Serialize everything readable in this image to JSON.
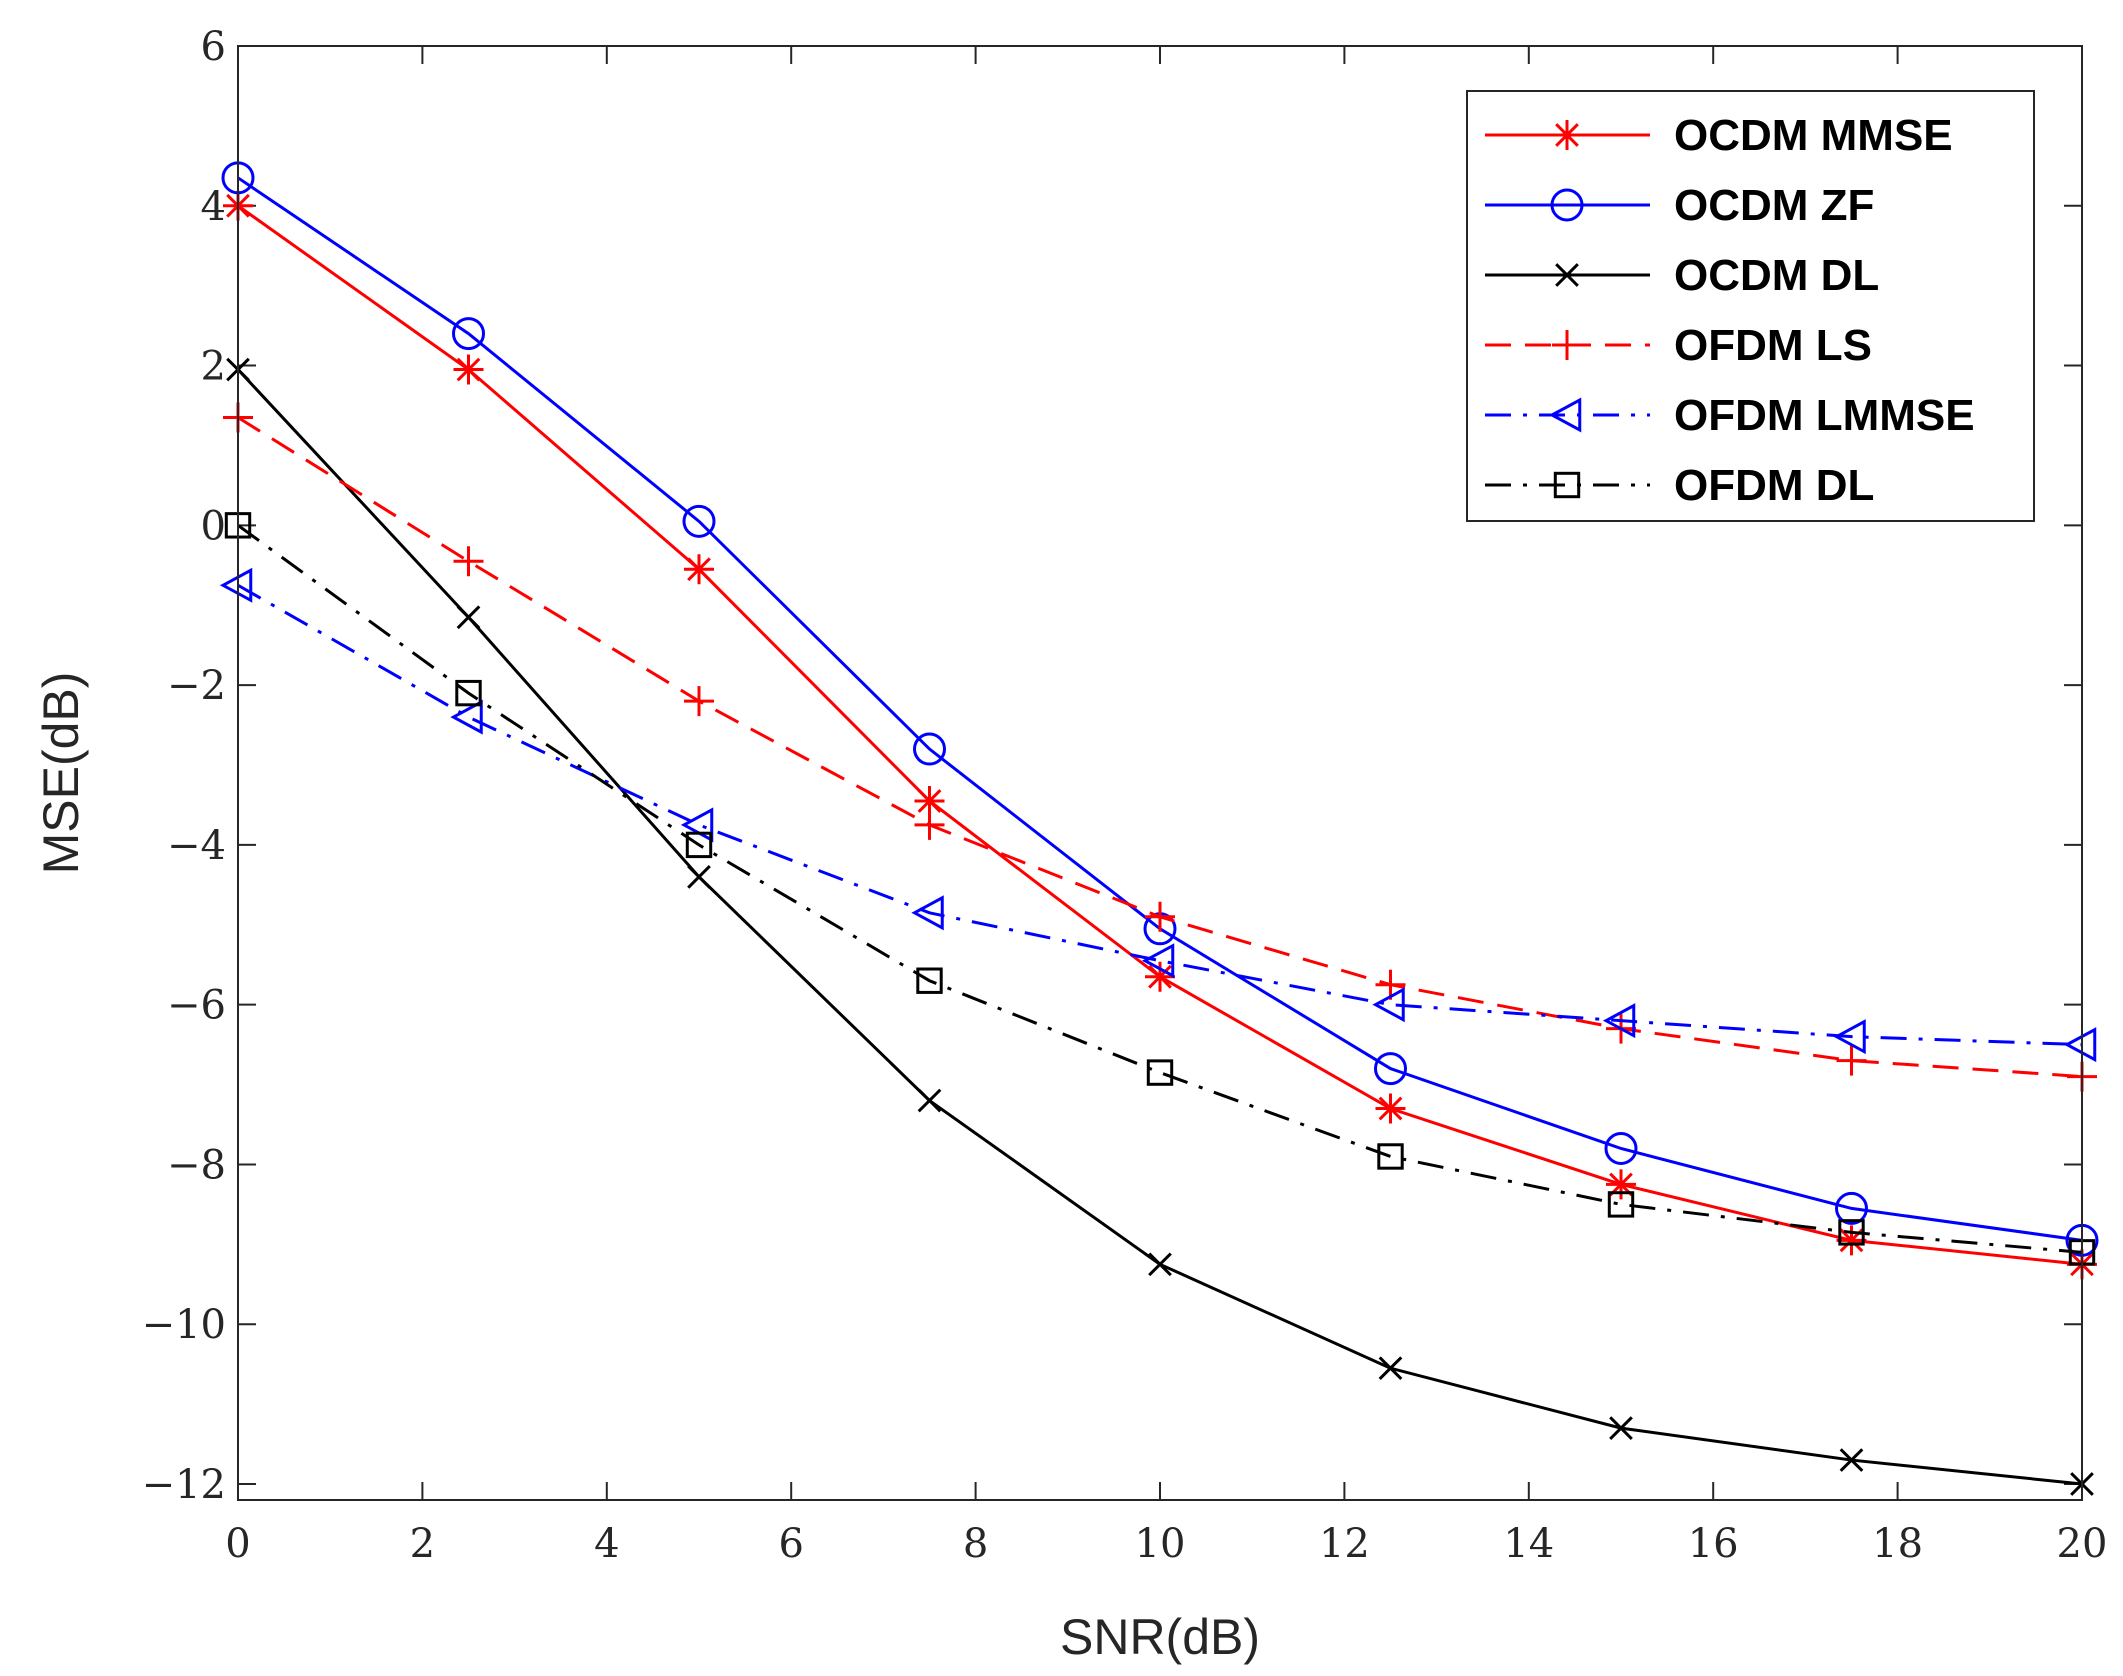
{
  "chart_data": {
    "type": "line",
    "title": "",
    "xlabel": "SNR(dB)",
    "ylabel": "MSE(dB)",
    "xlim": [
      0,
      20
    ],
    "ylim": [
      -12.2,
      6
    ],
    "xticks": [
      0,
      2,
      4,
      6,
      8,
      10,
      12,
      14,
      16,
      18,
      20
    ],
    "yticks": [
      6,
      4,
      2,
      0,
      -2,
      -4,
      -6,
      -8,
      -10,
      -12
    ],
    "xtick_labels": [
      "0",
      "2",
      "4",
      "6",
      "8",
      "10",
      "12",
      "14",
      "16",
      "18",
      "20"
    ],
    "ytick_labels": [
      "6",
      "4",
      "2",
      "0",
      "−2",
      "−4",
      "−6",
      "−8",
      "−10",
      "−12"
    ],
    "grid": false,
    "legend_position": "top-right",
    "x": [
      0,
      2.5,
      5,
      7.5,
      10,
      12.5,
      15,
      17.5,
      20
    ],
    "series": [
      {
        "name": "OCDM MMSE",
        "color": "#ff0000",
        "dash": "solid",
        "marker": "asterisk",
        "values": [
          4.0,
          1.95,
          -0.55,
          -3.45,
          -5.65,
          -7.3,
          -8.25,
          -8.95,
          -9.25
        ]
      },
      {
        "name": "OCDM ZF",
        "color": "#0000ff",
        "dash": "solid",
        "marker": "circle",
        "values": [
          4.35,
          2.4,
          0.05,
          -2.8,
          -5.05,
          -6.8,
          -7.8,
          -8.55,
          -8.95
        ]
      },
      {
        "name": "OCDM DL",
        "color": "#000000",
        "dash": "solid",
        "marker": "x",
        "values": [
          1.95,
          -1.15,
          -4.4,
          -7.2,
          -9.25,
          -10.55,
          -11.3,
          -11.7,
          -12.0
        ]
      },
      {
        "name": "OFDM LS",
        "color": "#ff0000",
        "dash": "dashed",
        "marker": "plus",
        "values": [
          1.35,
          -0.45,
          -2.2,
          -3.75,
          -4.9,
          -5.75,
          -6.3,
          -6.7,
          -6.9
        ]
      },
      {
        "name": "OFDM LMMSE",
        "color": "#0000ff",
        "dash": "dashdot",
        "marker": "triangle-left",
        "values": [
          -0.75,
          -2.4,
          -3.75,
          -4.85,
          -5.45,
          -6.0,
          -6.2,
          -6.4,
          -6.5
        ]
      },
      {
        "name": "OFDM DL",
        "color": "#000000",
        "dash": "dashdot",
        "marker": "square",
        "values": [
          0.0,
          -2.1,
          -4.0,
          -5.7,
          -6.85,
          -7.9,
          -8.5,
          -8.85,
          -9.1
        ]
      }
    ]
  }
}
